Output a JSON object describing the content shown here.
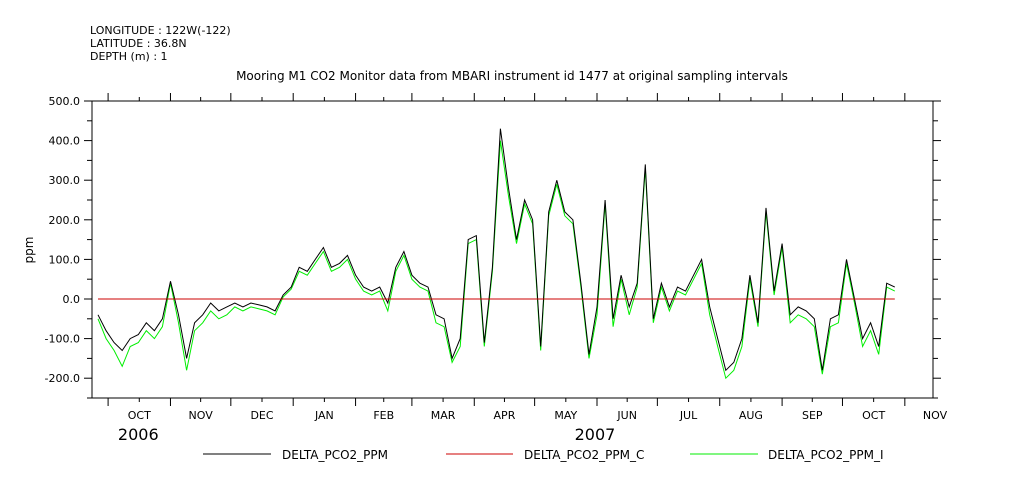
{
  "header": {
    "longitude": "LONGITUDE : 122W(-122)",
    "latitude": "LATITUDE : 36.8N",
    "depth": "DEPTH (m) : 1"
  },
  "chart_data": {
    "type": "line",
    "title": "Mooring M1 CO2 Monitor data from MBARI instrument id 1477 at original sampling intervals",
    "xlabel": "",
    "ylabel": "ppm",
    "ylim": [
      -250,
      500
    ],
    "yticks": [
      -200,
      -100,
      0,
      100,
      200,
      300,
      400,
      500
    ],
    "xlim": [
      "2006-09-23",
      "2007-11-15"
    ],
    "xticks": [
      {
        "label": "OCT",
        "date": "2006-10-01"
      },
      {
        "label": "NOV",
        "date": "2006-11-01"
      },
      {
        "label": "DEC",
        "date": "2006-12-01"
      },
      {
        "label": "JAN",
        "date": "2007-01-01"
      },
      {
        "label": "FEB",
        "date": "2007-02-01"
      },
      {
        "label": "MAR",
        "date": "2007-03-01"
      },
      {
        "label": "APR",
        "date": "2007-04-01"
      },
      {
        "label": "MAY",
        "date": "2007-05-01"
      },
      {
        "label": "JUN",
        "date": "2007-06-01"
      },
      {
        "label": "JUL",
        "date": "2007-07-01"
      },
      {
        "label": "AUG",
        "date": "2007-08-01"
      },
      {
        "label": "SEP",
        "date": "2007-09-01"
      },
      {
        "label": "OCT",
        "date": "2007-10-01"
      },
      {
        "label": "NOV",
        "date": "2007-11-01"
      }
    ],
    "year_labels": [
      {
        "label": "2006",
        "date": "2006-10-16"
      },
      {
        "label": "2007",
        "date": "2007-05-31"
      }
    ],
    "grid": false,
    "legend_position": "bottom",
    "colors": {
      "black": "#000000",
      "red": "#cc0000",
      "green": "#00ee00"
    },
    "series": [
      {
        "name": "DELTA_PCO2_PPM",
        "color": "#000000",
        "x": [
          "2006-09-26",
          "2006-09-30",
          "2006-10-04",
          "2006-10-08",
          "2006-10-12",
          "2006-10-16",
          "2006-10-20",
          "2006-10-24",
          "2006-10-28",
          "2006-11-01",
          "2006-11-05",
          "2006-11-09",
          "2006-11-13",
          "2006-11-17",
          "2006-11-21",
          "2006-11-25",
          "2006-11-29",
          "2006-12-03",
          "2006-12-07",
          "2006-12-11",
          "2006-12-15",
          "2006-12-19",
          "2006-12-23",
          "2006-12-27",
          "2006-12-31",
          "2007-01-04",
          "2007-01-08",
          "2007-01-12",
          "2007-01-16",
          "2007-01-20",
          "2007-01-24",
          "2007-01-28",
          "2007-02-01",
          "2007-02-05",
          "2007-02-09",
          "2007-02-13",
          "2007-02-17",
          "2007-02-21",
          "2007-02-25",
          "2007-03-01",
          "2007-03-05",
          "2007-03-09",
          "2007-03-13",
          "2007-03-17",
          "2007-03-21",
          "2007-03-25",
          "2007-03-29",
          "2007-04-02",
          "2007-04-06",
          "2007-04-10",
          "2007-04-14",
          "2007-04-18",
          "2007-04-22",
          "2007-04-26",
          "2007-04-30",
          "2007-05-04",
          "2007-05-08",
          "2007-05-12",
          "2007-05-16",
          "2007-05-20",
          "2007-05-24",
          "2007-05-28",
          "2007-06-01",
          "2007-06-05",
          "2007-06-09",
          "2007-06-13",
          "2007-06-17",
          "2007-06-21",
          "2007-06-25",
          "2007-06-29",
          "2007-07-03",
          "2007-07-07",
          "2007-07-11",
          "2007-07-15",
          "2007-07-19",
          "2007-07-23",
          "2007-07-27",
          "2007-07-31",
          "2007-08-04",
          "2007-08-08",
          "2007-08-12",
          "2007-08-16",
          "2007-08-20",
          "2007-08-24",
          "2007-08-28",
          "2007-09-01",
          "2007-09-05",
          "2007-09-09",
          "2007-09-13",
          "2007-09-17",
          "2007-09-21",
          "2007-09-25",
          "2007-09-29",
          "2007-10-03",
          "2007-10-07",
          "2007-10-11",
          "2007-10-15",
          "2007-10-19",
          "2007-10-23",
          "2007-10-27"
        ],
        "values": [
          -40,
          -80,
          -110,
          -130,
          -100,
          -90,
          -60,
          -80,
          -50,
          45,
          -40,
          -150,
          -60,
          -40,
          -10,
          -30,
          -20,
          -10,
          -20,
          -10,
          -15,
          -20,
          -30,
          10,
          30,
          80,
          70,
          100,
          130,
          80,
          90,
          110,
          60,
          30,
          20,
          30,
          -10,
          80,
          120,
          60,
          40,
          30,
          -40,
          -50,
          -150,
          -100,
          150,
          160,
          -110,
          80,
          430,
          280,
          150,
          250,
          200,
          -120,
          220,
          300,
          220,
          200,
          40,
          -140,
          -20,
          250,
          -50,
          60,
          -20,
          40,
          340,
          -50,
          40,
          -20,
          30,
          20,
          60,
          100,
          -20,
          -100,
          -180,
          -160,
          -100,
          60,
          -60,
          230,
          20,
          140,
          -40,
          -20,
          -30,
          -50,
          -180,
          -50,
          -40,
          100,
          0,
          -100,
          -60,
          -120,
          40,
          30
        ]
      },
      {
        "name": "DELTA_PCO2_PPM_C",
        "color": "#cc0000",
        "x": [
          "2006-09-26",
          "2007-10-27"
        ],
        "values": [
          0,
          0
        ]
      },
      {
        "name": "DELTA_PCO2_PPM_I",
        "color": "#00ee00",
        "x": [
          "2006-09-26",
          "2006-09-30",
          "2006-10-04",
          "2006-10-08",
          "2006-10-12",
          "2006-10-16",
          "2006-10-20",
          "2006-10-24",
          "2006-10-28",
          "2006-11-01",
          "2006-11-05",
          "2006-11-09",
          "2006-11-13",
          "2006-11-17",
          "2006-11-21",
          "2006-11-25",
          "2006-11-29",
          "2006-12-03",
          "2006-12-07",
          "2006-12-11",
          "2006-12-15",
          "2006-12-19",
          "2006-12-23",
          "2006-12-27",
          "2006-12-31",
          "2007-01-04",
          "2007-01-08",
          "2007-01-12",
          "2007-01-16",
          "2007-01-20",
          "2007-01-24",
          "2007-01-28",
          "2007-02-01",
          "2007-02-05",
          "2007-02-09",
          "2007-02-13",
          "2007-02-17",
          "2007-02-21",
          "2007-02-25",
          "2007-03-01",
          "2007-03-05",
          "2007-03-09",
          "2007-03-13",
          "2007-03-17",
          "2007-03-21",
          "2007-03-25",
          "2007-03-29",
          "2007-04-02",
          "2007-04-06",
          "2007-04-10",
          "2007-04-14",
          "2007-04-18",
          "2007-04-22",
          "2007-04-26",
          "2007-04-30",
          "2007-05-04",
          "2007-05-08",
          "2007-05-12",
          "2007-05-16",
          "2007-05-20",
          "2007-05-24",
          "2007-05-28",
          "2007-06-01",
          "2007-06-05",
          "2007-06-09",
          "2007-06-13",
          "2007-06-17",
          "2007-06-21",
          "2007-06-25",
          "2007-06-29",
          "2007-07-03",
          "2007-07-07",
          "2007-07-11",
          "2007-07-15",
          "2007-07-19",
          "2007-07-23",
          "2007-07-27",
          "2007-07-31",
          "2007-08-04",
          "2007-08-08",
          "2007-08-12",
          "2007-08-16",
          "2007-08-20",
          "2007-08-24",
          "2007-08-28",
          "2007-09-01",
          "2007-09-05",
          "2007-09-09",
          "2007-09-13",
          "2007-09-17",
          "2007-09-21",
          "2007-09-25",
          "2007-09-29",
          "2007-10-03",
          "2007-10-07",
          "2007-10-11",
          "2007-10-15",
          "2007-10-19",
          "2007-10-23",
          "2007-10-27"
        ],
        "values": [
          -50,
          -100,
          -130,
          -170,
          -120,
          -110,
          -80,
          -100,
          -70,
          40,
          -60,
          -180,
          -80,
          -60,
          -30,
          -50,
          -40,
          -20,
          -30,
          -20,
          -25,
          -30,
          -40,
          5,
          25,
          70,
          60,
          90,
          120,
          70,
          80,
          100,
          50,
          20,
          10,
          20,
          -30,
          70,
          110,
          50,
          30,
          20,
          -60,
          -70,
          -160,
          -120,
          140,
          150,
          -120,
          70,
          400,
          260,
          140,
          240,
          190,
          -130,
          210,
          290,
          210,
          190,
          30,
          -150,
          -40,
          240,
          -70,
          50,
          -40,
          30,
          330,
          -60,
          30,
          -30,
          20,
          10,
          50,
          90,
          -40,
          -120,
          -200,
          -180,
          -120,
          50,
          -70,
          220,
          10,
          130,
          -60,
          -40,
          -50,
          -70,
          -190,
          -70,
          -60,
          90,
          -10,
          -120,
          -80,
          -140,
          30,
          20
        ]
      }
    ]
  }
}
